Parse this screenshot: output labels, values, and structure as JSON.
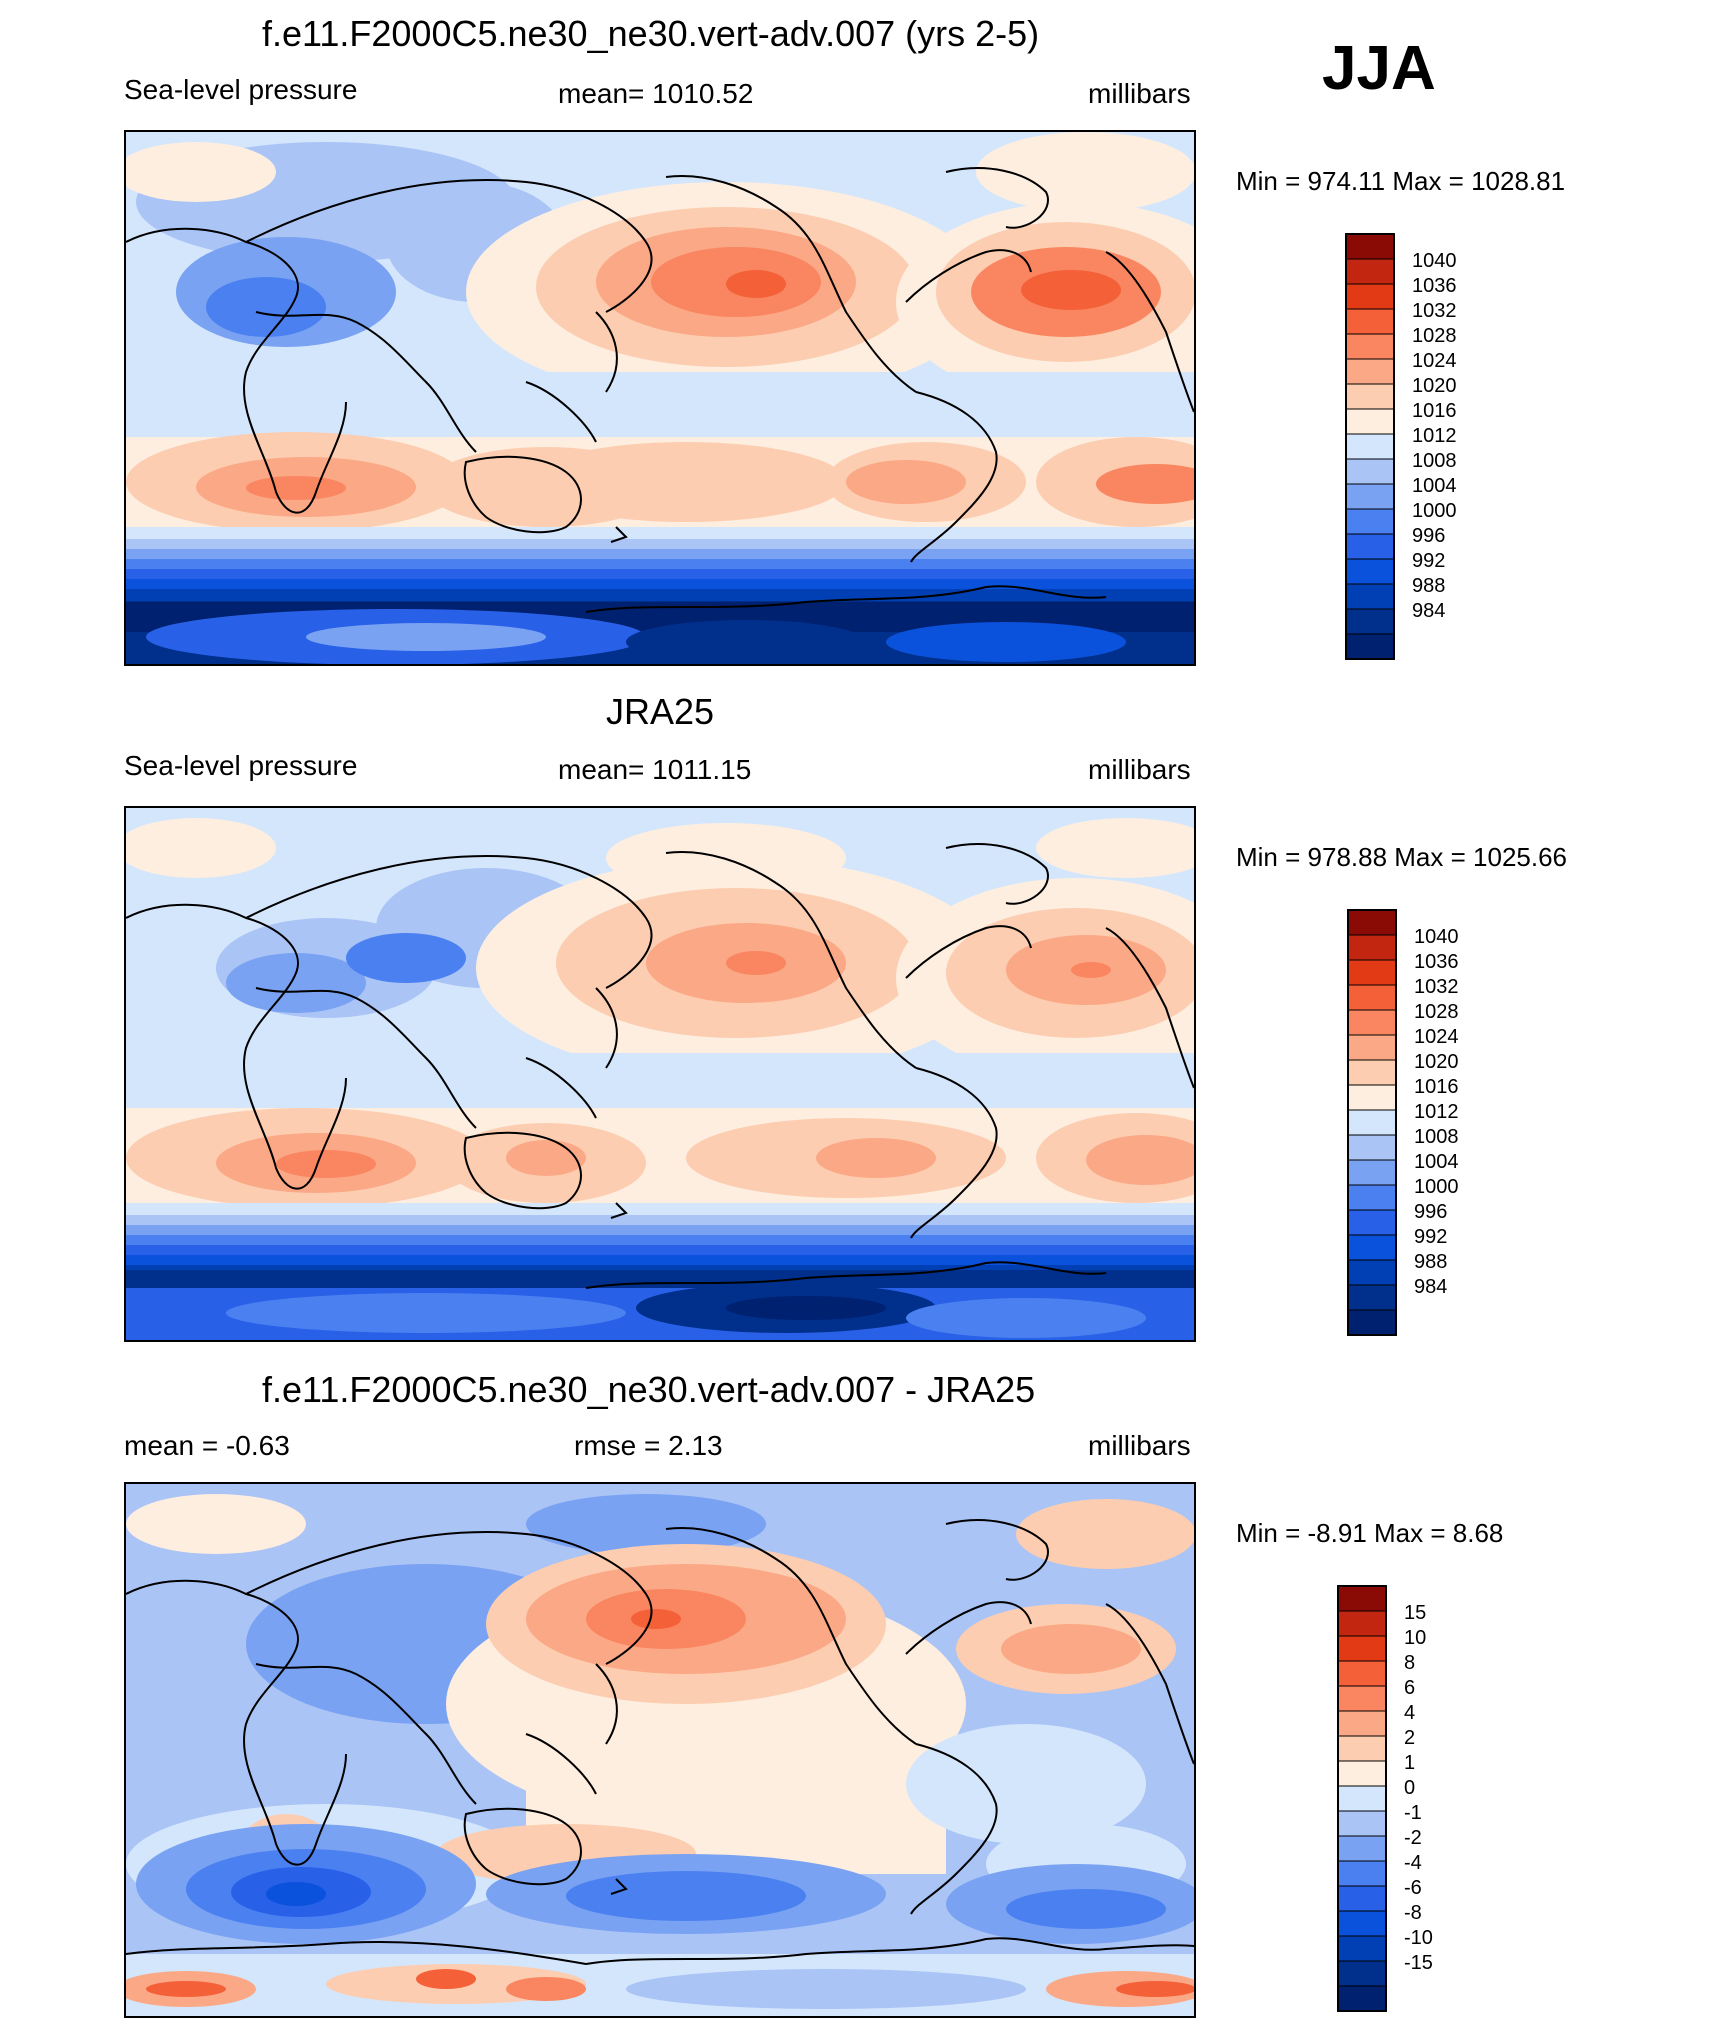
{
  "season_label": "JJA",
  "palette_abs": [
    "#002070",
    "#00308c",
    "#0040b4",
    "#0a52dc",
    "#2860e8",
    "#4a80f0",
    "#7aa2f2",
    "#aac4f6",
    "#d4e6fc",
    "#fdeee0",
    "#fccdb0",
    "#fba886",
    "#f98660",
    "#f46038",
    "#e33a16",
    "#c22610",
    "#8a0a06"
  ],
  "palette_diff": [
    "#002070",
    "#00308c",
    "#0040b4",
    "#0a52dc",
    "#2860e8",
    "#4a80f0",
    "#7aa2f2",
    "#aac4f6",
    "#d4e6fc",
    "#fdeee0",
    "#fccdb0",
    "#fba886",
    "#f98660",
    "#f46038",
    "#e33a16",
    "#c22610",
    "#8a0a06"
  ],
  "panels": [
    {
      "title": "f.e11.F2000C5.ne30_ne30.vert-adv.007 (yrs 2-5)",
      "left_label": "Sea-level pressure",
      "center_label": "mean= 1010.52",
      "right_label": "millibars",
      "minmax": "Min = 974.11 Max = 1028.81",
      "colorbar_levels": [
        "1040",
        "1036",
        "1032",
        "1028",
        "1024",
        "1020",
        "1016",
        "1012",
        "1008",
        "1004",
        "1000",
        "996",
        "992",
        "988",
        "984"
      ]
    },
    {
      "title": "JRA25",
      "left_label": "Sea-level pressure",
      "center_label": "mean= 1011.15",
      "right_label": "millibars",
      "minmax": "Min = 978.88 Max = 1025.66",
      "colorbar_levels": [
        "1040",
        "1036",
        "1032",
        "1028",
        "1024",
        "1020",
        "1016",
        "1012",
        "1008",
        "1004",
        "1000",
        "996",
        "992",
        "988",
        "984"
      ]
    },
    {
      "title": "f.e11.F2000C5.ne30_ne30.vert-adv.007 - JRA25",
      "left_label": "mean =  -0.63",
      "center_label": "rmse =   2.13",
      "right_label": "millibars",
      "minmax": "Min =  -8.91 Max =   8.68",
      "colorbar_levels": [
        "15",
        "10",
        "8",
        "6",
        "4",
        "2",
        "1",
        "0",
        "-1",
        "-2",
        "-4",
        "-6",
        "-8",
        "-10",
        "-15"
      ]
    }
  ]
}
